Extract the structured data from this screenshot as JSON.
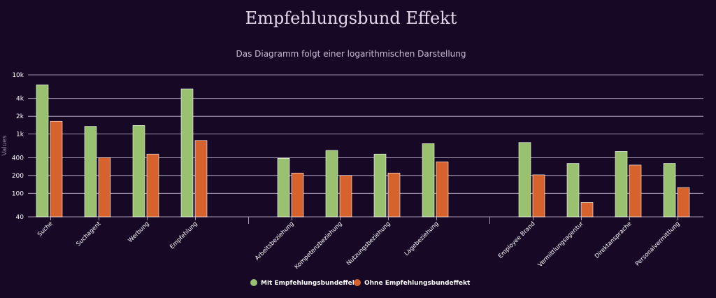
{
  "chart_data": {
    "type": "bar",
    "title": "Empfehlungsbund Effekt",
    "subtitle": "Das Diagramm folgt einer logarithmischen Darstellung",
    "ylabel": "Values",
    "yscale": "log",
    "ylim": [
      40,
      10000
    ],
    "yticks": [
      {
        "value": 10000,
        "label": "10k"
      },
      {
        "value": 4000,
        "label": "4k"
      },
      {
        "value": 2000,
        "label": "2k"
      },
      {
        "value": 1000,
        "label": "1k"
      },
      {
        "value": 400,
        "label": "400"
      },
      {
        "value": 200,
        "label": "200"
      },
      {
        "value": 100,
        "label": "100"
      },
      {
        "value": 40,
        "label": "40"
      }
    ],
    "groups": [
      [
        "Suche",
        "Suchagent",
        "Werbung",
        "Empfehlung"
      ],
      [
        "Arbeitsbeziehung",
        "Kompetenzbeziehung",
        "Nutzungsbeziehung",
        "Lagebeziehung"
      ],
      [
        "Employee Brand",
        "Vermittlungsagentur",
        "Direktansprache",
        "Personalvermittlung"
      ]
    ],
    "categories": [
      "Suche",
      "Suchagent",
      "Werbung",
      "Empfehlung",
      "Arbeitsbeziehung",
      "Kompetenzbeziehung",
      "Nutzungsbeziehung",
      "Lagebeziehung",
      "Employee Brand",
      "Vermittlungsagentur",
      "Direktansprache",
      "Personalvermittlung"
    ],
    "series": [
      {
        "name": "Mit Empfehlungsbundeffekt",
        "color": "#99c16f",
        "values": [
          6800,
          1350,
          1400,
          5800,
          390,
          530,
          460,
          690,
          720,
          320,
          510,
          320
        ]
      },
      {
        "name": "Ohne Empfehlungsbundeffekt",
        "color": "#d6632d",
        "values": [
          1650,
          400,
          460,
          780,
          220,
          200,
          220,
          340,
          205,
          70,
          300,
          125
        ]
      }
    ],
    "legend_position": "bottom-center",
    "grid": true
  },
  "colors": {
    "background": "#170826",
    "grid": "#cfc3d9"
  }
}
